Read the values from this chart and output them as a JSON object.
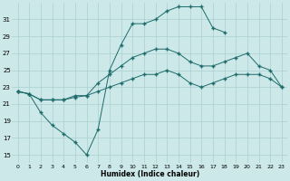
{
  "xlabel": "Humidex (Indice chaleur)",
  "bg_color": "#cce8e8",
  "grid_color": "#aacfcf",
  "line_color": "#1e6b6b",
  "ylim": [
    14,
    33
  ],
  "xlim": [
    -0.5,
    23.5
  ],
  "yticks": [
    15,
    17,
    19,
    21,
    23,
    25,
    27,
    29,
    31
  ],
  "xticks": [
    0,
    1,
    2,
    3,
    4,
    5,
    6,
    7,
    8,
    9,
    10,
    11,
    12,
    13,
    14,
    15,
    16,
    17,
    18,
    19,
    20,
    21,
    22,
    23
  ],
  "s1_x": [
    0,
    1,
    2,
    3,
    4,
    5,
    6,
    7,
    8,
    9,
    10,
    11,
    12,
    13,
    14,
    15,
    16,
    17,
    18
  ],
  "s1_y": [
    22.5,
    22.2,
    20.0,
    18.5,
    17.5,
    16.5,
    15.0,
    18.0,
    25.0,
    28.0,
    30.5,
    30.5,
    31.0,
    32.0,
    32.5,
    32.5,
    32.5,
    30.0,
    29.5
  ],
  "s2_x": [
    0,
    1,
    2,
    3,
    4,
    5,
    6,
    7,
    8,
    9,
    10,
    11,
    12,
    13,
    14,
    15,
    16,
    17,
    18,
    19,
    20,
    21,
    22,
    23
  ],
  "s2_y": [
    22.5,
    22.2,
    21.5,
    21.5,
    21.5,
    22.0,
    22.0,
    23.5,
    24.5,
    25.5,
    26.5,
    27.0,
    27.5,
    27.5,
    27.0,
    26.0,
    25.5,
    25.5,
    26.0,
    26.5,
    27.0,
    25.5,
    25.0,
    23.0
  ],
  "s3_x": [
    0,
    1,
    2,
    3,
    4,
    5,
    6,
    7,
    8,
    9,
    10,
    11,
    12,
    13,
    14,
    15,
    16,
    17,
    18,
    19,
    20,
    21,
    22,
    23
  ],
  "s3_y": [
    22.5,
    22.2,
    21.5,
    21.5,
    21.5,
    21.8,
    22.0,
    22.5,
    23.0,
    23.5,
    24.0,
    24.5,
    24.5,
    25.0,
    24.5,
    23.5,
    23.0,
    23.5,
    24.0,
    24.5,
    24.5,
    24.5,
    24.0,
    23.0
  ]
}
